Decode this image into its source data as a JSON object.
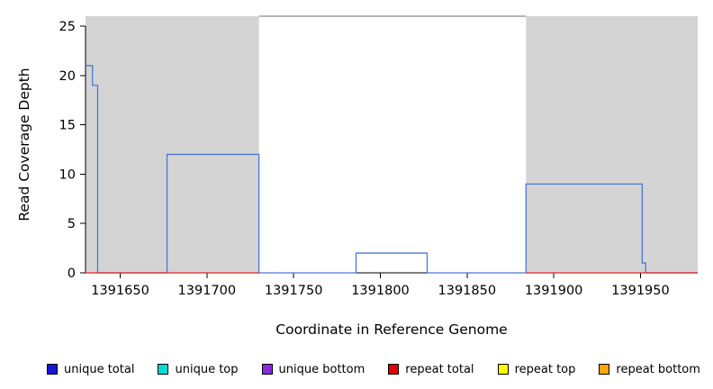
{
  "figure": {
    "background": "#ffffff"
  },
  "chart_data": {
    "type": "line",
    "title": "",
    "xlabel": "Coordinate in Reference Genome",
    "ylabel": "Read Coverage Depth",
    "xlim": [
      1391630,
      1391983
    ],
    "ylim": [
      0,
      26
    ],
    "x_ticks": [
      1391650,
      1391700,
      1391750,
      1391800,
      1391850,
      1391900,
      1391950
    ],
    "y_ticks": [
      0,
      5,
      10,
      15,
      20,
      25
    ],
    "grid": false,
    "legend_position": "bottom",
    "shaded_regions": {
      "color": "#d4d4d4",
      "regions": [
        {
          "x0": 1391630,
          "x1": 1391730
        },
        {
          "x0": 1391884,
          "x1": 1391983
        }
      ]
    },
    "top_boundary_line": {
      "x0": 1391730,
      "x1": 1391884,
      "y": 26,
      "color": "#6e6e6e"
    },
    "series": [
      {
        "name": "unique total",
        "color": "#4a77d4",
        "points": [
          [
            1391630,
            21
          ],
          [
            1391634,
            21
          ],
          [
            1391634,
            19
          ],
          [
            1391637,
            19
          ],
          [
            1391637,
            0
          ],
          [
            1391677,
            0
          ],
          [
            1391677,
            12
          ],
          [
            1391730,
            12
          ],
          [
            1391730,
            0
          ],
          [
            1391786,
            0
          ],
          [
            1391786,
            2
          ],
          [
            1391827,
            2
          ],
          [
            1391827,
            0
          ],
          [
            1391884,
            0
          ],
          [
            1391884,
            9
          ],
          [
            1391951,
            9
          ],
          [
            1391951,
            1
          ],
          [
            1391953,
            1
          ],
          [
            1391953,
            0
          ],
          [
            1391983,
            0
          ]
        ]
      },
      {
        "name": "repeat total",
        "color": "#e02020",
        "segments": [
          [
            [
              1391630,
              0
            ],
            [
              1391730,
              0
            ]
          ],
          [
            [
              1391884,
              0
            ],
            [
              1391983,
              0
            ]
          ]
        ]
      }
    ]
  },
  "legend": {
    "items": [
      {
        "label": "unique total",
        "color": "#1515d8"
      },
      {
        "label": "unique top",
        "color": "#00dbdb"
      },
      {
        "label": "unique bottom",
        "color": "#8a2be2"
      },
      {
        "label": "repeat total",
        "color": "#dc0000"
      },
      {
        "label": "repeat top",
        "color": "#ffff00"
      },
      {
        "label": "repeat bottom",
        "color": "#ffa500"
      }
    ]
  }
}
